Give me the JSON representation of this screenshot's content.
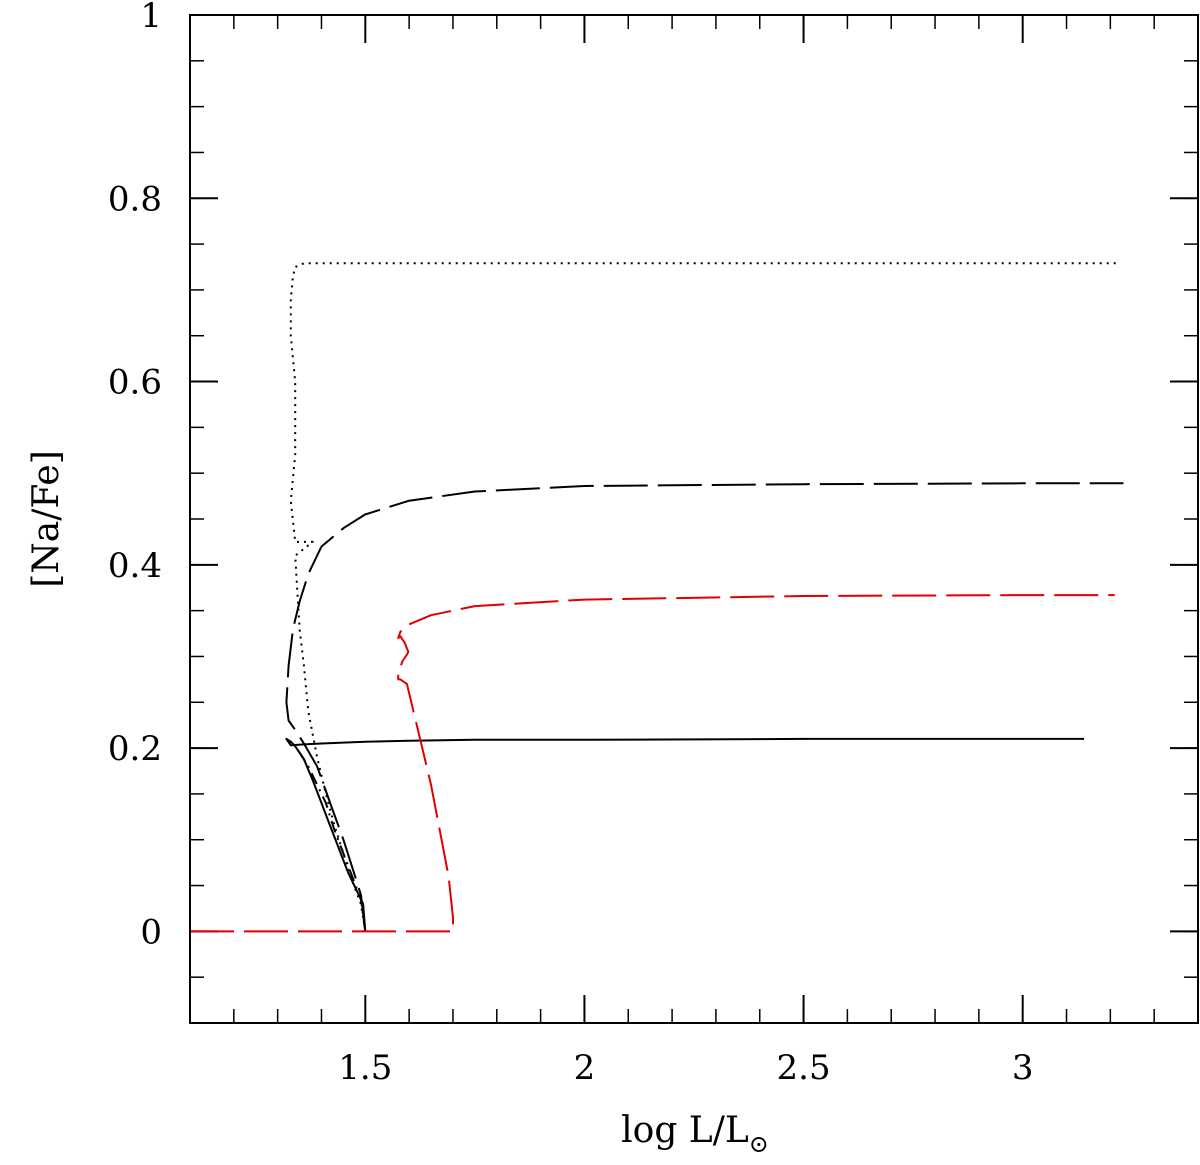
{
  "chart_data": {
    "type": "line",
    "xlabel": "log L/L",
    "xlabel_sub_symbol": "⊙",
    "ylabel": "[Na/Fe]",
    "xlim": [
      1.1,
      3.4
    ],
    "ylim": [
      -0.1,
      1.0
    ],
    "xticks_major": [
      1.5,
      2,
      2.5,
      3
    ],
    "xtick_labels": [
      "1.5",
      "2",
      "2.5",
      "3"
    ],
    "yticks_major": [
      0,
      0.2,
      0.4,
      0.6,
      0.8,
      1
    ],
    "ytick_labels": [
      "0",
      "0.2",
      "0.4",
      "0.6",
      "0.8",
      "1"
    ],
    "minor_x_step": 0.1,
    "minor_y_step": 0.05,
    "grid": false,
    "series": [
      {
        "style": "solid",
        "color": "#000000",
        "x": [
          1.5,
          1.495,
          1.48,
          1.46,
          1.44,
          1.42,
          1.4,
          1.38,
          1.36,
          1.34,
          1.33,
          1.32,
          1.33,
          1.36,
          1.4,
          1.5,
          1.6,
          1.75,
          2.0,
          2.5,
          3.0,
          3.14
        ],
        "y": [
          0.0,
          0.03,
          0.045,
          0.065,
          0.09,
          0.115,
          0.14,
          0.165,
          0.188,
          0.202,
          0.207,
          0.21,
          0.203,
          0.204,
          0.205,
          0.207,
          0.208,
          0.209,
          0.209,
          0.21,
          0.21,
          0.21
        ]
      },
      {
        "style": "dotted",
        "color": "#000000",
        "x": [
          1.5,
          1.49,
          1.47,
          1.45,
          1.43,
          1.41,
          1.39,
          1.37,
          1.36,
          1.35,
          1.345,
          1.34,
          1.38,
          1.38,
          1.34,
          1.33,
          1.34,
          1.34,
          1.33,
          1.33,
          1.335,
          1.34,
          1.36,
          1.4,
          1.6,
          2.0,
          2.5,
          3.0,
          3.22
        ],
        "y": [
          0.0,
          0.03,
          0.055,
          0.085,
          0.115,
          0.15,
          0.19,
          0.24,
          0.29,
          0.33,
          0.37,
          0.41,
          0.425,
          0.425,
          0.425,
          0.47,
          0.52,
          0.6,
          0.65,
          0.69,
          0.715,
          0.725,
          0.729,
          0.729,
          0.729,
          0.729,
          0.729,
          0.729,
          0.729
        ]
      },
      {
        "style": "long-dash",
        "color": "#000000",
        "x": [
          1.5,
          1.49,
          1.47,
          1.45,
          1.42,
          1.39,
          1.36,
          1.34,
          1.325,
          1.32,
          1.325,
          1.335,
          1.35,
          1.37,
          1.4,
          1.45,
          1.5,
          1.6,
          1.75,
          2.0,
          2.5,
          3.0,
          3.23
        ],
        "y": [
          0.0,
          0.04,
          0.07,
          0.1,
          0.14,
          0.18,
          0.205,
          0.22,
          0.23,
          0.25,
          0.29,
          0.33,
          0.36,
          0.39,
          0.42,
          0.44,
          0.455,
          0.47,
          0.48,
          0.486,
          0.488,
          0.489,
          0.489
        ]
      },
      {
        "style": "dash-dot",
        "color": "#000000",
        "x": [
          1.5,
          1.49,
          1.47,
          1.45,
          1.43,
          1.41,
          1.39,
          1.37,
          1.35,
          1.335
        ],
        "y": [
          0.0,
          0.035,
          0.06,
          0.085,
          0.11,
          0.14,
          0.16,
          0.18,
          0.195,
          0.205
        ]
      },
      {
        "style": "long-dash",
        "color": "#e00000",
        "x": [
          1.1,
          1.2,
          1.3,
          1.4,
          1.5,
          1.6,
          1.7,
          1.7,
          1.69,
          1.67,
          1.65,
          1.63,
          1.61,
          1.595,
          1.58,
          1.575,
          1.575,
          1.585,
          1.595,
          1.598,
          1.59,
          1.58,
          1.575,
          1.58,
          1.6,
          1.65,
          1.75,
          2.0,
          2.5,
          3.0,
          3.21
        ],
        "y": [
          0.0,
          0.0,
          0.0,
          0.0,
          0.0,
          0.0,
          0.0,
          0.015,
          0.06,
          0.11,
          0.16,
          0.2,
          0.24,
          0.27,
          0.275,
          0.275,
          0.282,
          0.295,
          0.302,
          0.305,
          0.315,
          0.322,
          0.32,
          0.327,
          0.335,
          0.345,
          0.355,
          0.362,
          0.366,
          0.367,
          0.367
        ]
      }
    ]
  }
}
